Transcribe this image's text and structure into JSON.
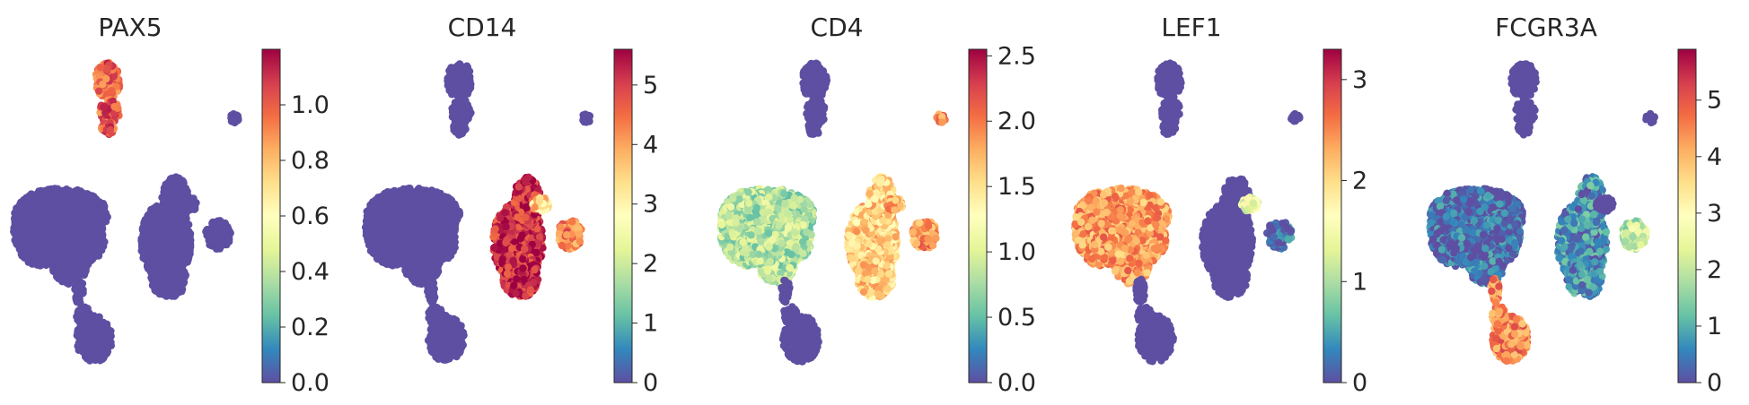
{
  "chart_data": [
    {
      "type": "scatter",
      "title": "PAX5",
      "colormap": "Spectral_r",
      "colorbar": {
        "range": [
          0,
          1.2
        ],
        "ticks": [
          "0.0",
          "0.2",
          "0.4",
          "0.6",
          "0.8",
          "1.0"
        ]
      },
      "cluster_expression": {
        "t_cells": 0.0,
        "monocytes": 0.0,
        "b_cells": 1.0,
        "nk_cells": 0.0,
        "fcgr3a_monocytes": 0.0,
        "dendritic": 0.0,
        "platelets": 0.0
      }
    },
    {
      "type": "scatter",
      "title": "CD14",
      "colormap": "Spectral_r",
      "colorbar": {
        "range": [
          0,
          5.6
        ],
        "ticks": [
          "0",
          "1",
          "2",
          "3",
          "4",
          "5"
        ]
      },
      "cluster_expression": {
        "t_cells": 0.0,
        "monocytes": 5.2,
        "b_cells": 0.0,
        "nk_cells": 0.0,
        "fcgr3a_monocytes": 4.3,
        "dendritic": 3.5,
        "platelets": 0.0
      }
    },
    {
      "type": "scatter",
      "title": "CD4",
      "colormap": "Spectral_r",
      "colorbar": {
        "range": [
          0,
          2.55
        ],
        "ticks": [
          "0.0",
          "0.5",
          "1.0",
          "1.5",
          "2.0",
          "2.5"
        ]
      },
      "cluster_expression": {
        "t_cells": 0.8,
        "monocytes": 1.6,
        "b_cells": 0.0,
        "nk_cells": 0.0,
        "fcgr3a_monocytes": 1.9,
        "dendritic": 1.8,
        "platelets": 1.9
      }
    },
    {
      "type": "scatter",
      "title": "LEF1",
      "colormap": "Spectral_r",
      "colorbar": {
        "range": [
          0,
          3.3
        ],
        "ticks": [
          "0",
          "1",
          "2",
          "3"
        ]
      },
      "cluster_expression": {
        "t_cells": 2.4,
        "monocytes": 0.0,
        "b_cells": 0.0,
        "nk_cells": 0.0,
        "fcgr3a_monocytes": 0.2,
        "dendritic": 1.4,
        "platelets": 0.0
      }
    },
    {
      "type": "scatter",
      "title": "FCGR3A",
      "colormap": "Spectral_r",
      "colorbar": {
        "range": [
          0,
          5.9
        ],
        "ticks": [
          "0",
          "1",
          "2",
          "3",
          "4",
          "5"
        ]
      },
      "cluster_expression": {
        "t_cells": 0.3,
        "monocytes": 0.7,
        "b_cells": 0.0,
        "nk_cells": 4.5,
        "fcgr3a_monocytes": 2.0,
        "dendritic": 0.0,
        "platelets": 0.0
      }
    }
  ]
}
